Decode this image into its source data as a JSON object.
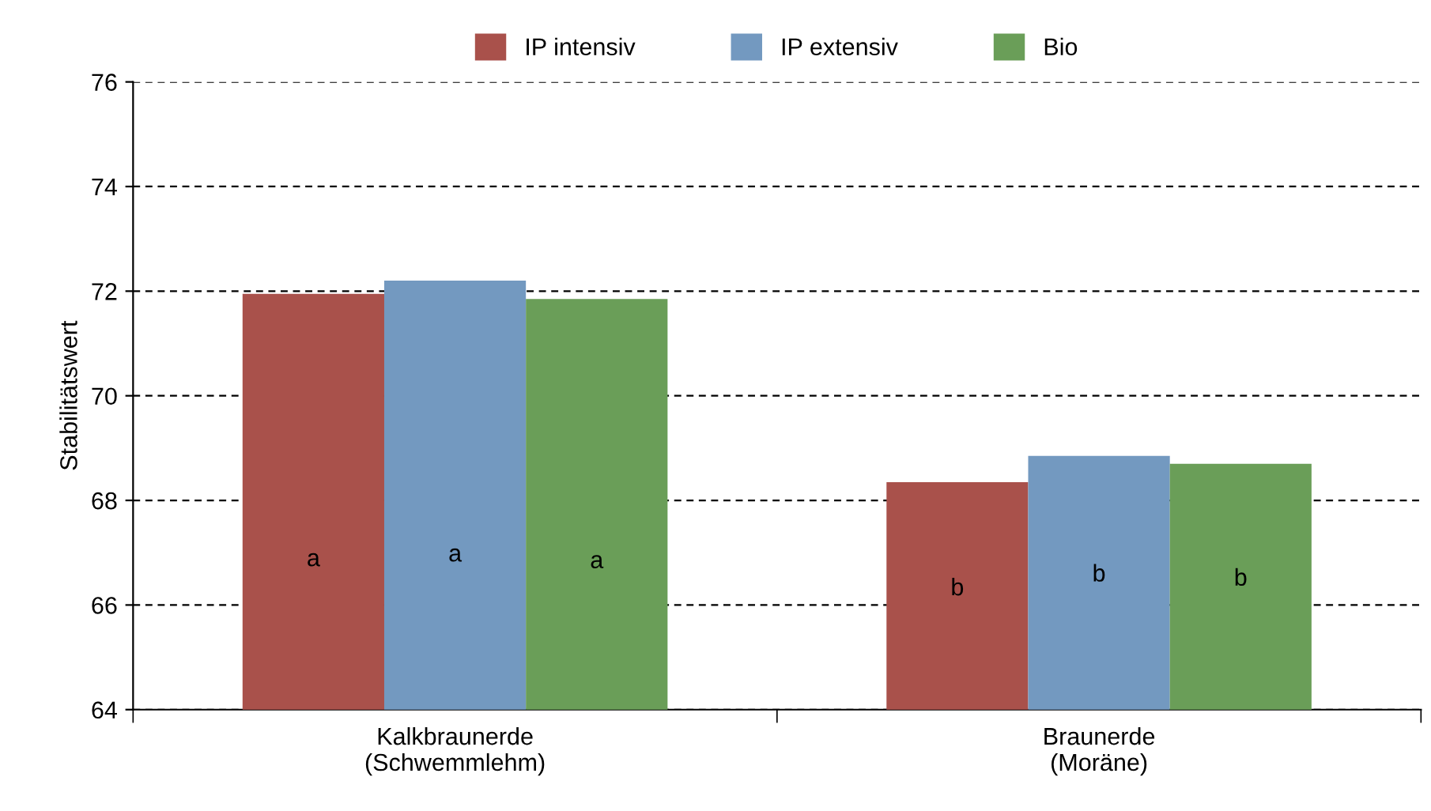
{
  "chart_data": {
    "type": "bar",
    "ylabel": "Stabilitätswert",
    "categories": [
      "Kalkbraunerde\n(Schwemmlehm)",
      "Braunerde\n(Moräne)"
    ],
    "series": [
      {
        "name": "IP intensiv",
        "color": "#a9514b",
        "values": [
          71.95,
          68.35
        ]
      },
      {
        "name": "IP extensiv",
        "color": "#7399c0",
        "values": [
          72.2,
          68.85
        ]
      },
      {
        "name": "Bio",
        "color": "#6a9e58",
        "values": [
          71.85,
          68.7
        ]
      }
    ],
    "ylim": [
      64,
      76
    ],
    "yticks": [
      64,
      66,
      68,
      70,
      72,
      74,
      76
    ],
    "grid": "y",
    "legend": "top",
    "annotations": [
      "a",
      "a",
      "a",
      "b",
      "b",
      "b"
    ]
  }
}
